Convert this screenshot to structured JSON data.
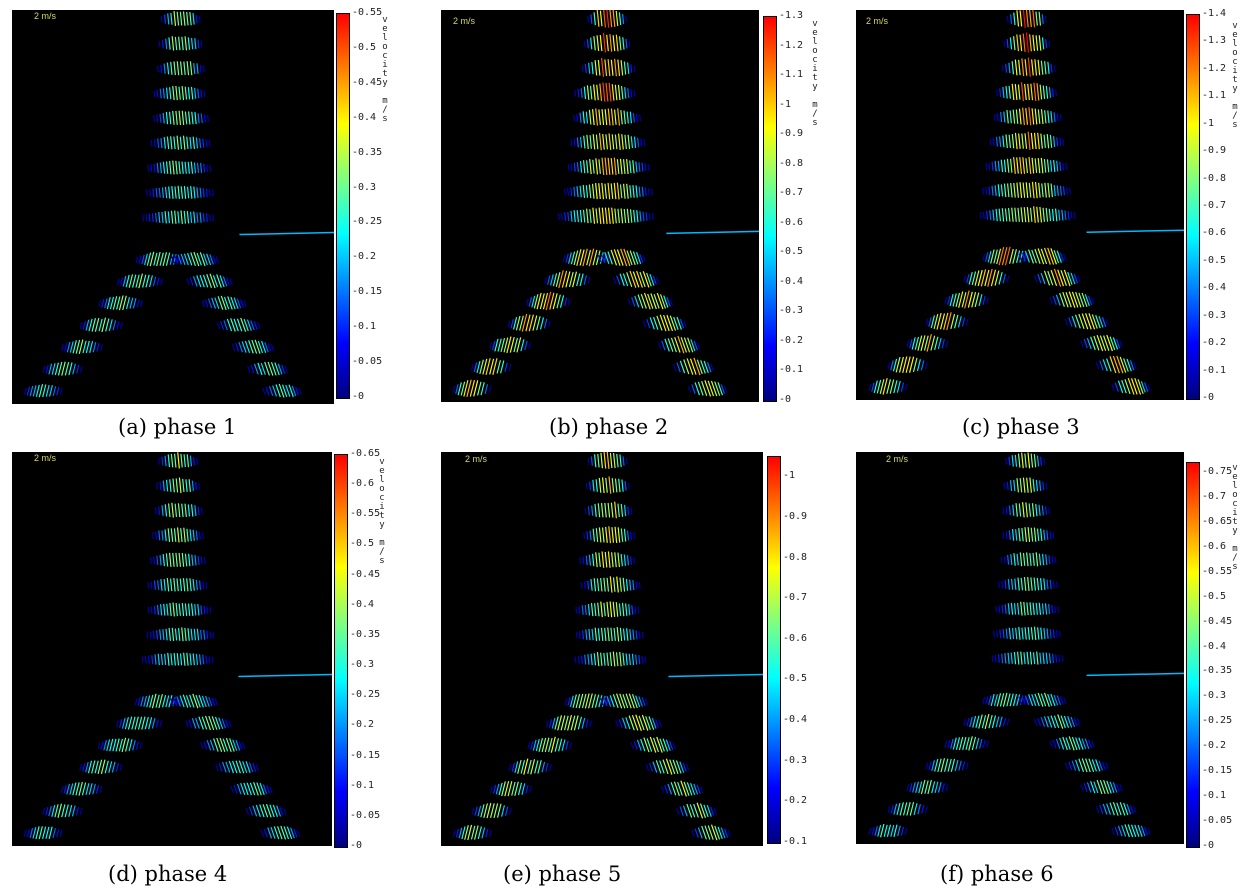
{
  "colors": {
    "background": "#000000",
    "colormap": [
      "#00007f",
      "#0000ff",
      "#007fff",
      "#00ffff",
      "#7fff7f",
      "#ffff00",
      "#ff7f00",
      "#ff0000"
    ],
    "scale_tag": "#d8d860"
  },
  "figure": {
    "panels": [
      {
        "id": "a",
        "caption": "(a) phase 1",
        "scale_label": "2 m/s",
        "unit_label": "velocity m/s",
        "ticks": [
          "0.55",
          "0.5",
          "0.45",
          "0.4",
          "0.35",
          "0.3",
          "0.25",
          "0.2",
          "0.15",
          "0.1",
          "0.05",
          "0"
        ],
        "vmin": 0,
        "vmax": 0.55
      },
      {
        "id": "b",
        "caption": "(b) phase 2",
        "scale_label": "2 m/s",
        "unit_label": "velocity m/s",
        "ticks": [
          "1.3",
          "1.2",
          "1.1",
          "1",
          "0.9",
          "0.8",
          "0.7",
          "0.6",
          "0.5",
          "0.4",
          "0.3",
          "0.2",
          "0.1",
          "0"
        ],
        "vmin": 0,
        "vmax": 1.3
      },
      {
        "id": "c",
        "caption": "(c) phase 3",
        "scale_label": "2 m/s",
        "unit_label": "velocity m/s",
        "ticks": [
          "1.4",
          "1.3",
          "1.2",
          "1.1",
          "1",
          "0.9",
          "0.8",
          "0.7",
          "0.6",
          "0.5",
          "0.4",
          "0.3",
          "0.2",
          "0.1",
          "0"
        ],
        "vmin": 0,
        "vmax": 1.4
      },
      {
        "id": "d",
        "caption": "(d) phase 4",
        "scale_label": "2 m/s",
        "unit_label": "velocity m/s",
        "ticks": [
          "0.65",
          "0.6",
          "0.55",
          "0.5",
          "0.45",
          "0.4",
          "0.35",
          "0.3",
          "0.25",
          "0.2",
          "0.15",
          "0.1",
          "0.05",
          "0"
        ],
        "vmin": 0,
        "vmax": 0.65
      },
      {
        "id": "e",
        "caption": "(e) phase 5",
        "scale_label": "2 m/s",
        "unit_label": "",
        "ticks": [
          "1",
          "0.9",
          "0.8",
          "0.7",
          "0.6",
          "0.5",
          "0.4",
          "0.3",
          "0.2",
          "0.1"
        ],
        "vmin": 0.1,
        "vmax": 1.05
      },
      {
        "id": "f",
        "caption": "(f) phase 6",
        "scale_label": "2 m/s",
        "unit_label": "velocity m/s",
        "ticks": [
          "0.75",
          "0.7",
          "0.65",
          "0.6",
          "0.55",
          "0.5",
          "0.45",
          "0.4",
          "0.35",
          "0.3",
          "0.25",
          "0.2",
          "0.15",
          "0.1",
          "0.05",
          "0"
        ],
        "vmin": 0,
        "vmax": 0.77
      }
    ]
  }
}
